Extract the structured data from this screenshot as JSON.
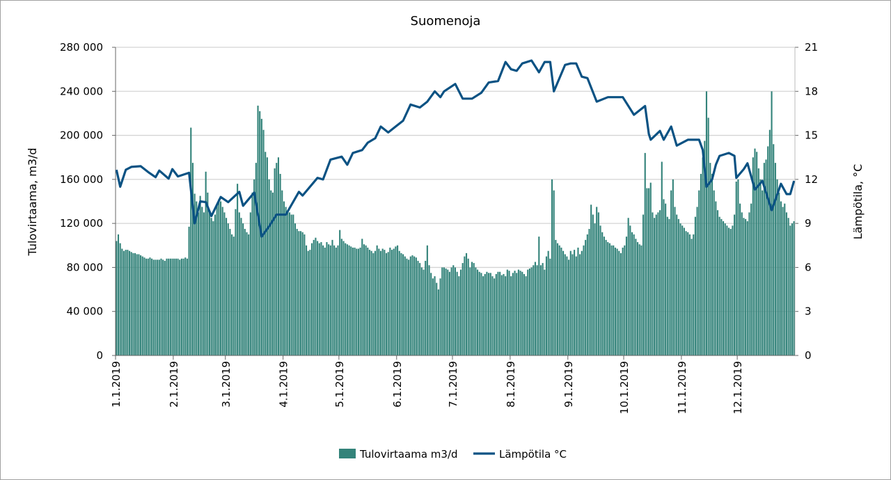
{
  "chart_data": {
    "type": "bar+line",
    "title": "Suomenoja",
    "ylabel_left": "Tulovirtaama, m3/d",
    "ylabel_right": "Lämpötila, °C",
    "y_left_lim": [
      0,
      280000
    ],
    "y_right_lim": [
      0,
      21
    ],
    "y_left_ticks": [
      "0",
      "40 000",
      "80 000",
      "120 000",
      "160 000",
      "200 000",
      "240 000",
      "280 000"
    ],
    "y_right_ticks": [
      "0",
      "3",
      "6",
      "9",
      "12",
      "15",
      "18",
      "21"
    ],
    "x_ticks": [
      {
        "day": 0,
        "label": "1.1.2019"
      },
      {
        "day": 31,
        "label": "2.1.2019"
      },
      {
        "day": 59,
        "label": "3.1.2019"
      },
      {
        "day": 90,
        "label": "4.1.2019"
      },
      {
        "day": 120,
        "label": "5.1.2019"
      },
      {
        "day": 151,
        "label": "6.1.2019"
      },
      {
        "day": 181,
        "label": "7.1.2019"
      },
      {
        "day": 212,
        "label": "8.1.2019"
      },
      {
        "day": 243,
        "label": "9.1.2019"
      },
      {
        "day": 273,
        "label": "10.1.2019"
      },
      {
        "day": 304,
        "label": "11.1.2019"
      },
      {
        "day": 334,
        "label": "12.1.2019"
      }
    ],
    "grid": true,
    "legend_position": "bottom",
    "colors": {
      "bars": "#33837a",
      "line": "#0b5283",
      "grid": "#d4d4d4"
    },
    "series": [
      {
        "name": "Tulovirtaama m3/d",
        "type": "bar",
        "axis": "left",
        "unit_multiplier": 1000,
        "daily_values_by_month": [
          [
            104,
            110,
            102,
            97,
            95,
            96,
            96,
            95,
            94,
            93,
            93,
            92,
            92,
            91,
            90,
            89,
            88,
            88,
            89,
            88,
            87,
            87,
            87,
            87,
            88,
            87,
            86,
            88,
            88,
            88,
            88
          ],
          [
            88,
            88,
            88,
            87,
            88,
            88,
            89,
            88,
            117,
            207,
            175,
            147,
            140,
            130,
            145,
            135,
            130,
            167,
            148,
            130,
            125,
            122,
            128,
            138,
            142,
            140,
            135,
            130
          ],
          [
            125,
            120,
            115,
            110,
            108,
            133,
            156,
            130,
            125,
            120,
            115,
            112,
            110,
            130,
            148,
            160,
            175,
            227,
            222,
            215,
            205,
            185,
            180,
            160,
            150,
            148,
            170,
            175,
            180,
            165,
            150
          ],
          [
            140,
            135,
            132,
            130,
            128,
            128,
            120,
            115,
            113,
            113,
            112,
            110,
            100,
            95,
            96,
            102,
            105,
            107,
            104,
            102,
            103,
            100,
            98,
            103,
            101,
            100,
            105,
            100,
            98,
            100
          ],
          [
            114,
            106,
            104,
            102,
            101,
            100,
            99,
            98,
            98,
            97,
            97,
            98,
            106,
            101,
            100,
            98,
            96,
            95,
            93,
            95,
            100,
            97,
            95,
            97,
            96,
            93,
            94,
            98,
            96,
            97,
            99
          ],
          [
            100,
            95,
            93,
            92,
            90,
            88,
            87,
            90,
            91,
            90,
            89,
            86,
            84,
            80,
            78,
            86,
            100,
            82,
            75,
            70,
            72,
            66,
            60,
            70,
            80,
            80,
            79,
            78,
            76,
            80
          ],
          [
            82,
            80,
            76,
            72,
            78,
            84,
            90,
            93,
            88,
            80,
            85,
            84,
            80,
            78,
            76,
            75,
            72,
            74,
            76,
            75,
            75,
            72,
            70,
            74,
            76,
            76,
            73,
            74,
            72,
            78,
            77
          ],
          [
            72,
            75,
            77,
            75,
            78,
            77,
            76,
            74,
            72,
            78,
            79,
            80,
            82,
            85,
            82,
            108,
            82,
            84,
            78,
            90,
            95,
            88,
            160,
            150,
            105,
            102,
            100,
            98,
            95,
            92,
            90
          ],
          [
            87,
            95,
            92,
            96,
            90,
            98,
            92,
            95,
            100,
            105,
            110,
            115,
            137,
            128,
            120,
            135,
            130,
            118,
            112,
            108,
            105,
            103,
            102,
            100,
            100,
            98,
            97,
            95,
            93,
            98
          ],
          [
            100,
            108,
            125,
            118,
            112,
            110,
            106,
            103,
            101,
            100,
            128,
            184,
            152,
            152,
            157,
            130,
            125,
            128,
            130,
            132,
            176,
            142,
            138,
            126,
            124,
            150,
            160,
            135,
            128,
            124,
            120
          ],
          [
            118,
            116,
            113,
            112,
            110,
            106,
            110,
            126,
            135,
            150,
            165,
            180,
            195,
            240,
            216,
            175,
            165,
            150,
            140,
            132,
            126,
            124,
            122,
            120,
            118,
            116,
            115,
            118,
            128,
            158
          ],
          [
            160,
            138,
            130,
            125,
            124,
            122,
            130,
            138,
            180,
            188,
            185,
            170,
            160,
            150,
            175,
            178,
            190,
            205,
            240,
            192,
            175,
            160,
            148,
            140,
            135,
            138,
            130,
            125,
            118,
            120,
            122
          ]
        ]
      },
      {
        "name": "Lämpötila °C",
        "type": "line",
        "axis": "right",
        "points_day_temp": [
          [
            0,
            12.65
          ],
          [
            2,
            11.5
          ],
          [
            5,
            12.65
          ],
          [
            8,
            12.85
          ],
          [
            13,
            12.9
          ],
          [
            17,
            12.5
          ],
          [
            21,
            12.15
          ],
          [
            23,
            12.6
          ],
          [
            28,
            12.05
          ],
          [
            30,
            12.7
          ],
          [
            33,
            12.2
          ],
          [
            39,
            12.45
          ],
          [
            42,
            9.0
          ],
          [
            45,
            10.5
          ],
          [
            48,
            10.45
          ],
          [
            51,
            9.5
          ],
          [
            56,
            10.8
          ],
          [
            60,
            10.45
          ],
          [
            66,
            11.15
          ],
          [
            68,
            10.2
          ],
          [
            74,
            11.1
          ],
          [
            78,
            8.1
          ],
          [
            82,
            8.8
          ],
          [
            86,
            9.6
          ],
          [
            91,
            9.6
          ],
          [
            98,
            11.15
          ],
          [
            100,
            10.9
          ],
          [
            108,
            12.1
          ],
          [
            111,
            12.0
          ],
          [
            115,
            13.35
          ],
          [
            121,
            13.55
          ],
          [
            124,
            13.0
          ],
          [
            127,
            13.8
          ],
          [
            132,
            14.0
          ],
          [
            135,
            14.5
          ],
          [
            139,
            14.8
          ],
          [
            142,
            15.6
          ],
          [
            146,
            15.2
          ],
          [
            150,
            15.6
          ],
          [
            154,
            16.0
          ],
          [
            158,
            17.1
          ],
          [
            163,
            16.9
          ],
          [
            167,
            17.3
          ],
          [
            171,
            18.0
          ],
          [
            174,
            17.6
          ],
          [
            176,
            18.0
          ],
          [
            182,
            18.5
          ],
          [
            186,
            17.5
          ],
          [
            191,
            17.5
          ],
          [
            196,
            17.9
          ],
          [
            200,
            18.6
          ],
          [
            205,
            18.7
          ],
          [
            209,
            20.0
          ],
          [
            212,
            19.5
          ],
          [
            215,
            19.4
          ],
          [
            218,
            19.9
          ],
          [
            223,
            20.1
          ],
          [
            227,
            19.3
          ],
          [
            230,
            20.0
          ],
          [
            233,
            20.0
          ],
          [
            235,
            18.0
          ],
          [
            241,
            19.8
          ],
          [
            244,
            19.9
          ],
          [
            247,
            19.9
          ],
          [
            250,
            19.0
          ],
          [
            253,
            18.9
          ],
          [
            258,
            17.3
          ],
          [
            264,
            17.6
          ],
          [
            272,
            17.6
          ],
          [
            278,
            16.4
          ],
          [
            284,
            17.0
          ],
          [
            286,
            15.1
          ],
          [
            287,
            14.7
          ],
          [
            292,
            15.3
          ],
          [
            294,
            14.7
          ],
          [
            298,
            15.6
          ],
          [
            301,
            14.3
          ],
          [
            307,
            14.7
          ],
          [
            313,
            14.7
          ],
          [
            315,
            14.0
          ],
          [
            317,
            11.5
          ],
          [
            320,
            12.0
          ],
          [
            322,
            13.0
          ],
          [
            324,
            13.6
          ],
          [
            329,
            13.8
          ],
          [
            332,
            13.6
          ],
          [
            333,
            12.1
          ],
          [
            337,
            12.7
          ],
          [
            339,
            13.1
          ],
          [
            343,
            11.3
          ],
          [
            347,
            11.9
          ],
          [
            352,
            9.9
          ],
          [
            357,
            11.7
          ],
          [
            360,
            11.0
          ],
          [
            362,
            11.0
          ],
          [
            364,
            11.9
          ]
        ]
      }
    ]
  },
  "legend": {
    "bars_label": "Tulovirtaama m3/d",
    "line_label": "Lämpötila °C"
  }
}
